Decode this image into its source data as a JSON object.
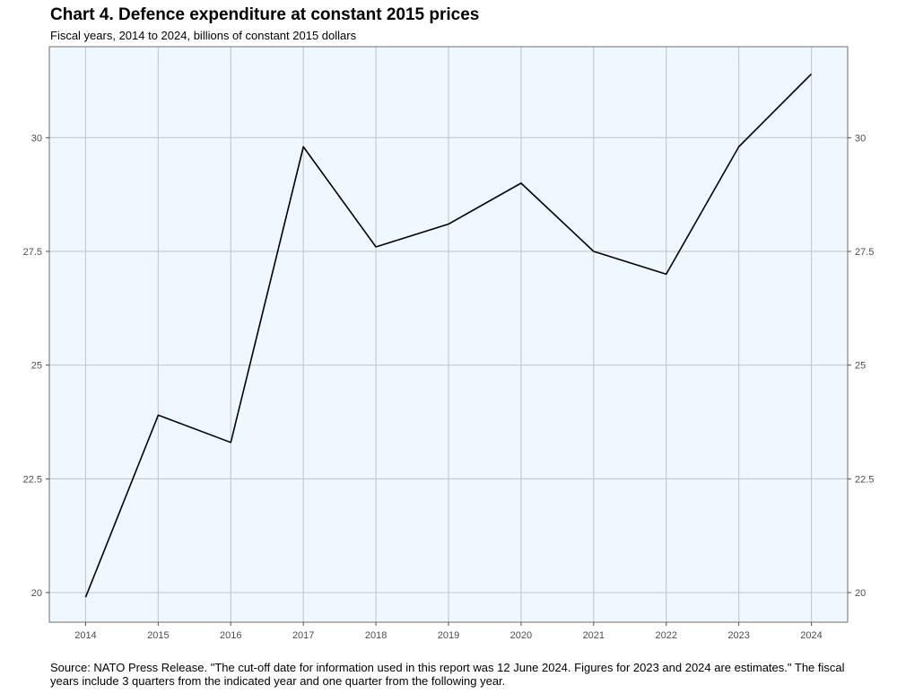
{
  "chart_data": {
    "type": "line",
    "title": "Chart 4. Defence expenditure at constant 2015 prices",
    "subtitle": "Fiscal years, 2014 to 2024, billions of constant 2015 dollars",
    "xlabel": "",
    "ylabel": "",
    "x": [
      "2014",
      "2015",
      "2016",
      "2017",
      "2018",
      "2019",
      "2020",
      "2021",
      "2022",
      "2023",
      "2024"
    ],
    "series": [
      {
        "values": [
          19.9,
          23.9,
          23.3,
          29.8,
          27.6,
          28.1,
          29.0,
          27.5,
          27.0,
          29.8,
          31.4
        ],
        "color": "#000000"
      }
    ],
    "xlim": [
      "2013.5",
      "2024.5"
    ],
    "ylim": [
      19.35,
      32.0
    ],
    "yticks": [
      20,
      22.5,
      25,
      27.5,
      30
    ],
    "ytick_labels": [
      "20",
      "22.5",
      "25",
      "27.5",
      "30"
    ],
    "grid": true,
    "secondary_y_axis": true,
    "plot_background": "#f0f8ff",
    "grid_color": "#c7cbd0",
    "border_color": "#6f6f6f",
    "footnote": "Source: NATO Press Release. \"The cut-off date for information used in this report was 12 June 2024. Figures for 2023 and 2024 are estimates.\" The fiscal years include 3 quarters from the indicated year and one quarter from the following year."
  }
}
